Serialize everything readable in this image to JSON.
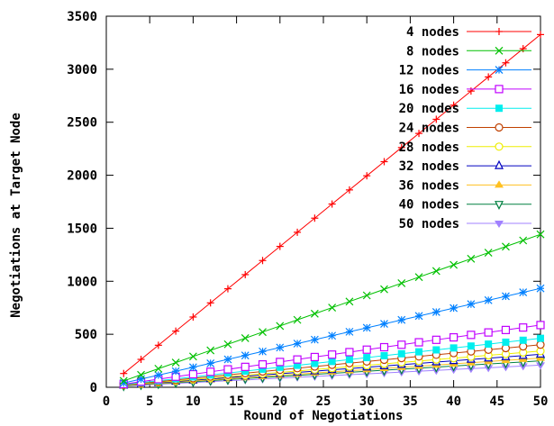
{
  "chart_data": {
    "type": "line",
    "xlabel": "Round of Negotiations",
    "ylabel": "Negotiations at Target Node",
    "xlim": [
      0,
      50
    ],
    "ylim": [
      0,
      3500
    ],
    "xticks": [
      "0",
      "5",
      "10",
      "15",
      "20",
      "25",
      "30",
      "35",
      "40",
      "45",
      "50"
    ],
    "yticks": [
      "0",
      "500",
      "1000",
      "1500",
      "2000",
      "2500",
      "3000",
      "3500"
    ],
    "grid": false,
    "legend_position": "top-right",
    "x": [
      2,
      4,
      6,
      8,
      10,
      12,
      14,
      16,
      18,
      20,
      22,
      24,
      26,
      28,
      30,
      32,
      34,
      36,
      38,
      40,
      42,
      44,
      46,
      48,
      50
    ],
    "series": [
      {
        "name": "4 nodes",
        "color": "#ff0000",
        "marker": "plus",
        "start": 130,
        "slope": 66.6
      },
      {
        "name": "8 nodes",
        "color": "#00c000",
        "marker": "cross",
        "start": 60,
        "slope": 28.8
      },
      {
        "name": "12 nodes",
        "color": "#0080ff",
        "marker": "star",
        "start": 40,
        "slope": 18.6
      },
      {
        "name": "16 nodes",
        "color": "#c000ff",
        "marker": "square-open",
        "start": 30,
        "slope": 11.6
      },
      {
        "name": "20 nodes",
        "color": "#00eeee",
        "marker": "square-filled",
        "start": 25,
        "slope": 9.1
      },
      {
        "name": "24 nodes",
        "color": "#c04000",
        "marker": "circle-open",
        "start": 22,
        "slope": 7.9
      },
      {
        "name": "28 nodes",
        "color": "#eeee00",
        "marker": "circle-open",
        "start": 20,
        "slope": 6.7
      },
      {
        "name": "32 nodes",
        "color": "#0000c0",
        "marker": "triangle-open",
        "start": 18,
        "slope": 6.1
      },
      {
        "name": "36 nodes",
        "color": "#ffc020",
        "marker": "triangle-filled",
        "start": 16,
        "slope": 5.4
      },
      {
        "name": "40 nodes",
        "color": "#008040",
        "marker": "triangle-down-open",
        "start": 14,
        "slope": 4.9
      },
      {
        "name": "50 nodes",
        "color": "#a080ff",
        "marker": "triangle-down-filled",
        "start": 12,
        "slope": 4.1
      }
    ]
  }
}
